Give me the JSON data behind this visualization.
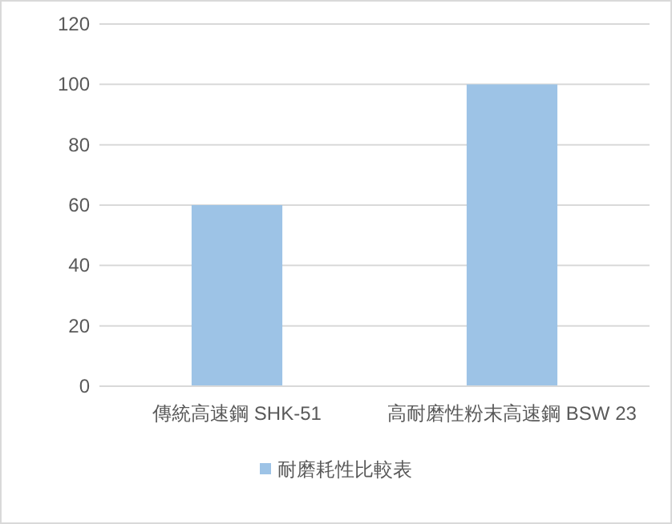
{
  "chart_data": {
    "type": "bar",
    "categories": [
      "傳統高速鋼 SHK-51",
      "高耐磨性粉末高速鋼  BSW 23"
    ],
    "series": [
      {
        "name": "耐磨耗性比較表",
        "color": "#9dc3e6",
        "values": [
          60,
          100
        ]
      }
    ],
    "ylim": [
      0,
      120
    ],
    "yticks": [
      0,
      20,
      40,
      60,
      80,
      100,
      120
    ],
    "grid": "y",
    "legend": "bottom"
  }
}
